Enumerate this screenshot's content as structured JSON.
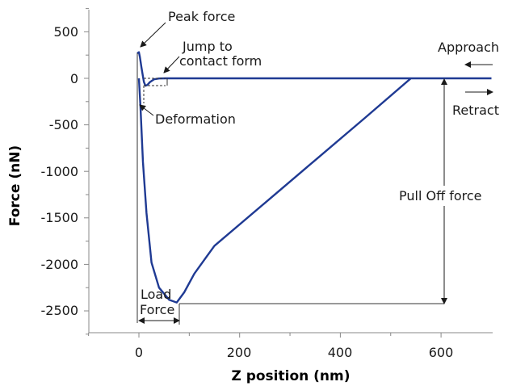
{
  "chart_data": {
    "type": "line",
    "xlabel": "Z position (nm)",
    "ylabel": "Force (nN)",
    "xlim": [
      -100,
      700
    ],
    "ylim": [
      -2750,
      750
    ],
    "x_ticks": [
      0,
      200,
      400,
      600
    ],
    "y_ticks": [
      500,
      0,
      -500,
      -1000,
      -1500,
      -2000,
      -2500
    ],
    "grid": false,
    "series": [
      {
        "color": "#1f3a93",
        "points": [
          [
            -3,
            270
          ],
          [
            0,
            280
          ],
          [
            2,
            230
          ],
          [
            5,
            120
          ],
          [
            8,
            20
          ],
          [
            10,
            -40
          ],
          [
            13,
            -80
          ],
          [
            17,
            -70
          ],
          [
            22,
            -40
          ],
          [
            30,
            -10
          ],
          [
            40,
            -2
          ],
          [
            55,
            0
          ],
          [
            150,
            0
          ],
          [
            300,
            0
          ],
          [
            500,
            0
          ],
          [
            700,
            0
          ],
          [
            540,
            0
          ],
          [
            450,
            -420
          ],
          [
            350,
            -880
          ],
          [
            250,
            -1340
          ],
          [
            150,
            -1800
          ],
          [
            110,
            -2100
          ],
          [
            90,
            -2300
          ],
          [
            75,
            -2410
          ],
          [
            60,
            -2380
          ],
          [
            40,
            -2250
          ],
          [
            25,
            -1980
          ],
          [
            15,
            -1450
          ],
          [
            8,
            -900
          ],
          [
            3,
            -300
          ],
          [
            0,
            0
          ]
        ]
      }
    ],
    "annotations": [
      {
        "text": "Peak force",
        "x": 0,
        "y": 270
      },
      {
        "text": "Jump to",
        "x": 60,
        "y": 0
      },
      {
        "text": "contact form",
        "x": 60,
        "y": 0
      },
      {
        "text": "Deformation",
        "x": 0,
        "y": -280
      },
      {
        "text": "Approach",
        "x": 650,
        "y": 0
      },
      {
        "text": "Retract",
        "x": 650,
        "y": 0
      },
      {
        "text": "Pull Off force",
        "x": 600,
        "y": -1200
      },
      {
        "text": "Load",
        "x": 40,
        "y": -2400
      },
      {
        "text": "Force",
        "x": 40,
        "y": -2400
      }
    ]
  }
}
